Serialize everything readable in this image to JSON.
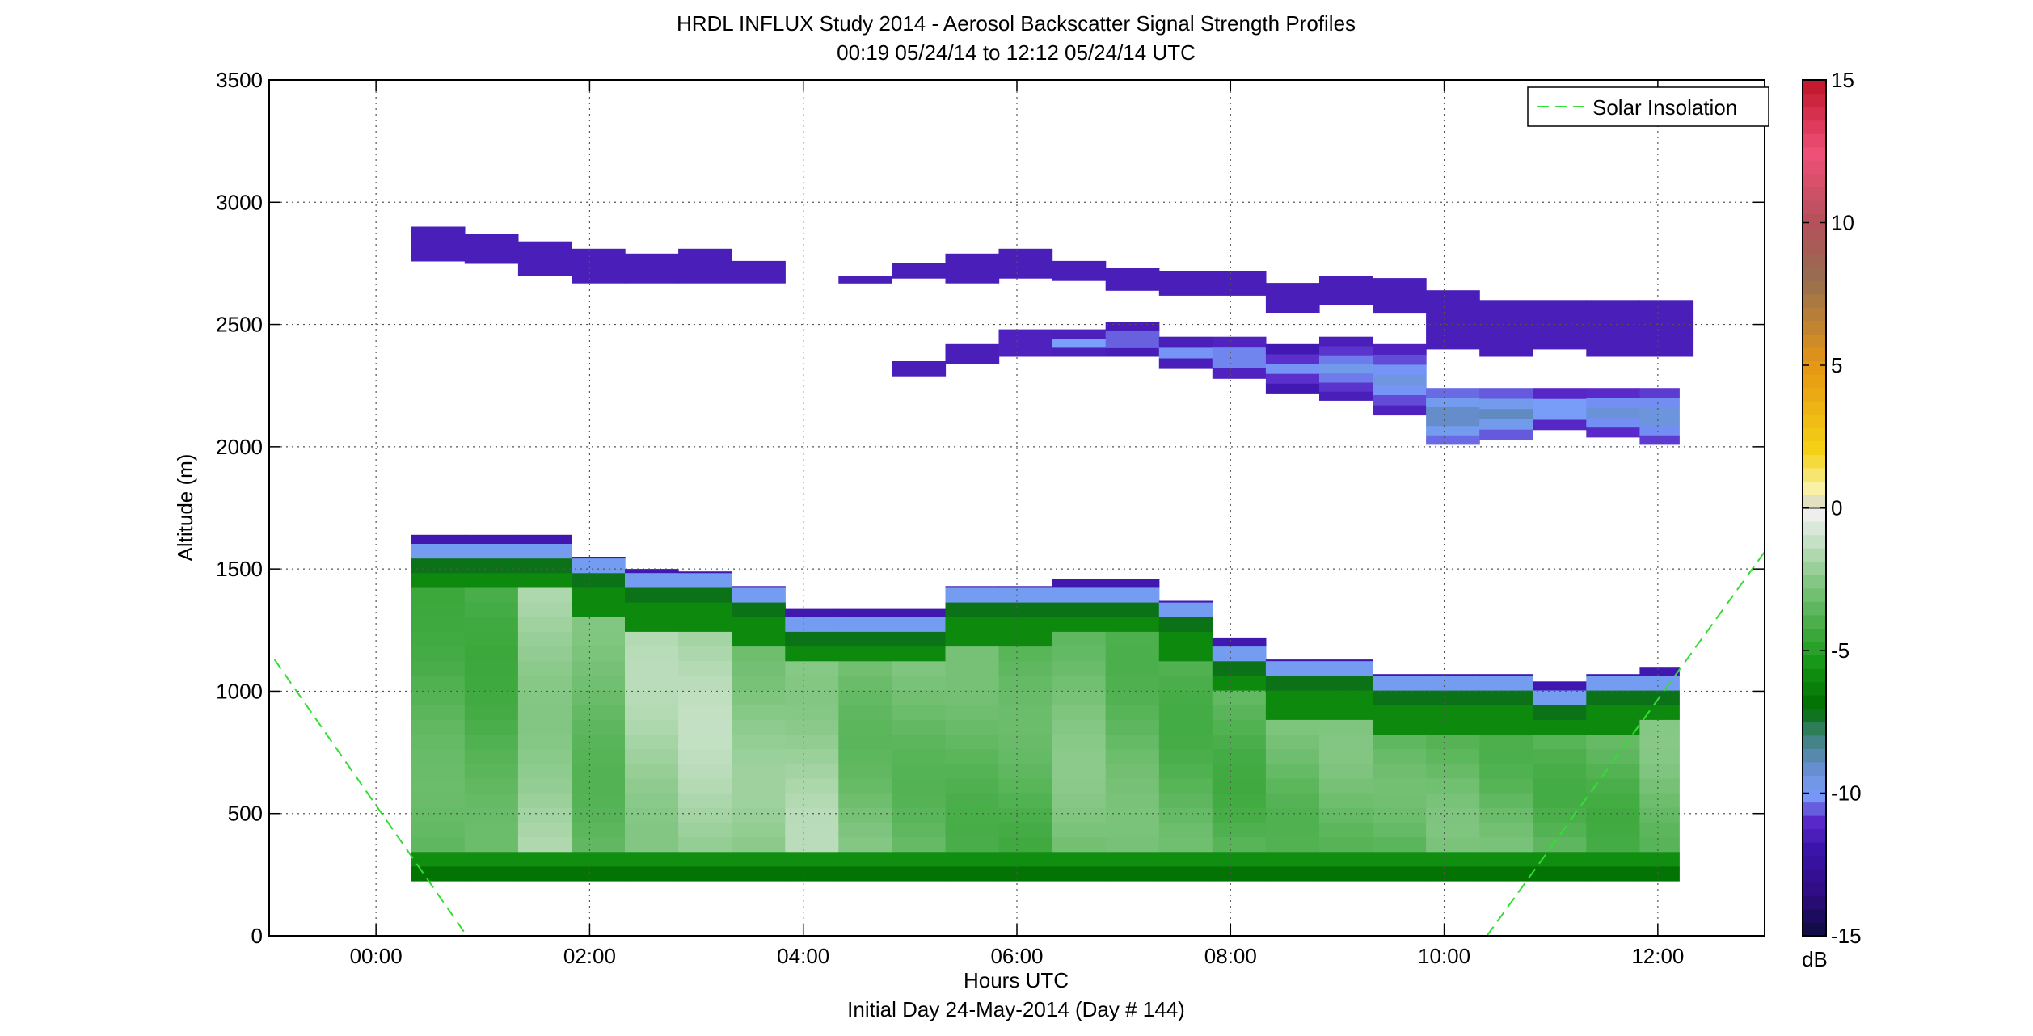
{
  "chart_data": {
    "type": "heatmap",
    "title": "HRDL INFLUX Study 2014 - Aerosol Backscatter Signal Strength Profiles",
    "subtitle": "00:19 05/24/14 to 12:12 05/24/14  UTC",
    "xlabel": "Hours UTC",
    "xlabel2": "Initial Day 24-May-2014 (Day # 144)",
    "ylabel": "Altitude (m)",
    "xlim": [
      -1.0,
      13.0
    ],
    "ylim": [
      0,
      3500
    ],
    "x_ticks": [
      0,
      2,
      4,
      6,
      8,
      10,
      12
    ],
    "x_tick_labels": [
      "00:00",
      "02:00",
      "04:00",
      "06:00",
      "08:00",
      "10:00",
      "12:00"
    ],
    "y_ticks": [
      0,
      500,
      1000,
      1500,
      2000,
      2500,
      3000,
      3500
    ],
    "y_tick_labels": [
      "0",
      "500",
      "1000",
      "1500",
      "2000",
      "2500",
      "3000",
      "3500"
    ],
    "grid": true,
    "legend": {
      "label": "Solar Insolation",
      "placement": "top-right",
      "color": "#33dd33",
      "style": "dashed"
    },
    "colorbar": {
      "label": "dB",
      "range": [
        -15,
        15
      ],
      "ticks": [
        -15,
        -10,
        -5,
        0,
        5,
        10,
        15
      ],
      "tick_labels": [
        "-15",
        "-10",
        "-5",
        "0",
        "5",
        "10",
        "15"
      ]
    },
    "time_bins_hours": [
      0.33,
      0.83,
      1.33,
      1.83,
      2.33,
      2.83,
      3.33,
      3.83,
      4.33,
      4.83,
      5.33,
      5.83,
      6.33,
      6.83,
      7.33,
      7.83,
      8.33,
      8.83,
      9.33,
      9.83,
      10.33,
      10.83,
      11.33,
      11.83,
      12.2
    ],
    "boundary_layer": {
      "bottom_m": 225,
      "top_m": [
        1640,
        1640,
        1640,
        1550,
        1500,
        1490,
        1430,
        1340,
        1340,
        1340,
        1430,
        1430,
        1460,
        1460,
        1370,
        1220,
        1130,
        1130,
        1070,
        1070,
        1070,
        1040,
        1070,
        1100
      ],
      "mean_db": [
        -3.8,
        -3.8,
        -2.0,
        -3.2,
        -2.0,
        -1.8,
        -2.6,
        -2.0,
        -3.0,
        -3.2,
        -3.5,
        -3.8,
        -3.0,
        -3.4,
        -3.6,
        -3.7,
        -3.3,
        -3.2,
        -3.6,
        -3.3,
        -3.4,
        -3.6,
        -3.7,
        -3.1
      ]
    },
    "aerosol_layers": [
      {
        "x0": 0.33,
        "x1": 0.83,
        "bottom_m": 2760,
        "top_m": 2900,
        "db": -11.5
      },
      {
        "x0": 0.83,
        "x1": 1.33,
        "bottom_m": 2750,
        "top_m": 2870,
        "db": -11.5
      },
      {
        "x0": 1.33,
        "x1": 1.83,
        "bottom_m": 2700,
        "top_m": 2840,
        "db": -11.5
      },
      {
        "x0": 1.83,
        "x1": 2.33,
        "bottom_m": 2670,
        "top_m": 2810,
        "db": -11.5
      },
      {
        "x0": 2.33,
        "x1": 2.83,
        "bottom_m": 2670,
        "top_m": 2790,
        "db": -11.5
      },
      {
        "x0": 2.83,
        "x1": 3.33,
        "bottom_m": 2670,
        "top_m": 2810,
        "db": -11.5
      },
      {
        "x0": 3.33,
        "x1": 3.83,
        "bottom_m": 2670,
        "top_m": 2760,
        "db": -11.5
      },
      {
        "x0": 4.33,
        "x1": 4.83,
        "bottom_m": 2670,
        "top_m": 2700,
        "db": -11.5
      },
      {
        "x0": 4.83,
        "x1": 5.33,
        "bottom_m": 2690,
        "top_m": 2750,
        "db": -11.5
      },
      {
        "x0": 5.33,
        "x1": 5.83,
        "bottom_m": 2670,
        "top_m": 2790,
        "db": -11.5
      },
      {
        "x0": 5.83,
        "x1": 6.33,
        "bottom_m": 2690,
        "top_m": 2810,
        "db": -11.5
      },
      {
        "x0": 6.33,
        "x1": 6.83,
        "bottom_m": 2680,
        "top_m": 2760,
        "db": -11.5
      },
      {
        "x0": 6.83,
        "x1": 7.33,
        "bottom_m": 2640,
        "top_m": 2730,
        "db": -11.5
      },
      {
        "x0": 7.33,
        "x1": 7.83,
        "bottom_m": 2620,
        "top_m": 2720,
        "db": -11.5
      },
      {
        "x0": 7.83,
        "x1": 8.33,
        "bottom_m": 2620,
        "top_m": 2720,
        "db": -11.5
      },
      {
        "x0": 8.33,
        "x1": 8.83,
        "bottom_m": 2550,
        "top_m": 2670,
        "db": -11.5
      },
      {
        "x0": 8.83,
        "x1": 9.33,
        "bottom_m": 2580,
        "top_m": 2700,
        "db": -11.5
      },
      {
        "x0": 9.33,
        "x1": 9.83,
        "bottom_m": 2550,
        "top_m": 2690,
        "db": -11.5
      },
      {
        "x0": 9.83,
        "x1": 10.33,
        "bottom_m": 2400,
        "top_m": 2640,
        "db": -11.5
      },
      {
        "x0": 10.33,
        "x1": 10.83,
        "bottom_m": 2370,
        "top_m": 2600,
        "db": -11.5
      },
      {
        "x0": 10.83,
        "x1": 11.33,
        "bottom_m": 2400,
        "top_m": 2600,
        "db": -11.5
      },
      {
        "x0": 11.33,
        "x1": 11.83,
        "bottom_m": 2370,
        "top_m": 2600,
        "db": -11.5
      },
      {
        "x0": 11.83,
        "x1": 12.33,
        "bottom_m": 2370,
        "top_m": 2600,
        "db": -11.5
      },
      {
        "x0": 4.83,
        "x1": 5.33,
        "bottom_m": 2290,
        "top_m": 2350,
        "db": -11.5
      },
      {
        "x0": 5.33,
        "x1": 5.83,
        "bottom_m": 2340,
        "top_m": 2420,
        "db": -11.5
      },
      {
        "x0": 5.83,
        "x1": 6.33,
        "bottom_m": 2370,
        "top_m": 2480,
        "db": -11.3
      },
      {
        "x0": 6.33,
        "x1": 6.83,
        "bottom_m": 2370,
        "top_m": 2480,
        "db": -10.9
      },
      {
        "x0": 6.83,
        "x1": 7.33,
        "bottom_m": 2370,
        "top_m": 2510,
        "db": -10.9
      },
      {
        "x0": 7.33,
        "x1": 7.83,
        "bottom_m": 2320,
        "top_m": 2450,
        "db": -11.0
      },
      {
        "x0": 7.83,
        "x1": 8.33,
        "bottom_m": 2280,
        "top_m": 2450,
        "db": -10.6
      },
      {
        "x0": 8.33,
        "x1": 8.83,
        "bottom_m": 2220,
        "top_m": 2420,
        "db": -11.0
      },
      {
        "x0": 8.83,
        "x1": 9.33,
        "bottom_m": 2190,
        "top_m": 2450,
        "db": -10.6
      },
      {
        "x0": 9.33,
        "x1": 9.83,
        "bottom_m": 2130,
        "top_m": 2420,
        "db": -10.4
      },
      {
        "x0": 9.83,
        "x1": 10.33,
        "bottom_m": 2010,
        "top_m": 2240,
        "db": -9.6
      },
      {
        "x0": 10.33,
        "x1": 10.83,
        "bottom_m": 2030,
        "top_m": 2240,
        "db": -9.8
      },
      {
        "x0": 10.83,
        "x1": 11.33,
        "bottom_m": 2070,
        "top_m": 2240,
        "db": -10.4
      },
      {
        "x0": 11.33,
        "x1": 11.83,
        "bottom_m": 2040,
        "top_m": 2240,
        "db": -10.2
      },
      {
        "x0": 11.83,
        "x1": 12.2,
        "bottom_m": 2010,
        "top_m": 2240,
        "db": -10.0
      }
    ],
    "solar_insolation_lines": [
      {
        "x": [
          -0.95,
          0.85
        ],
        "y": [
          1130,
          0
        ]
      },
      {
        "x": [
          10.4,
          13.0
        ],
        "y": [
          0,
          1570
        ]
      }
    ]
  }
}
